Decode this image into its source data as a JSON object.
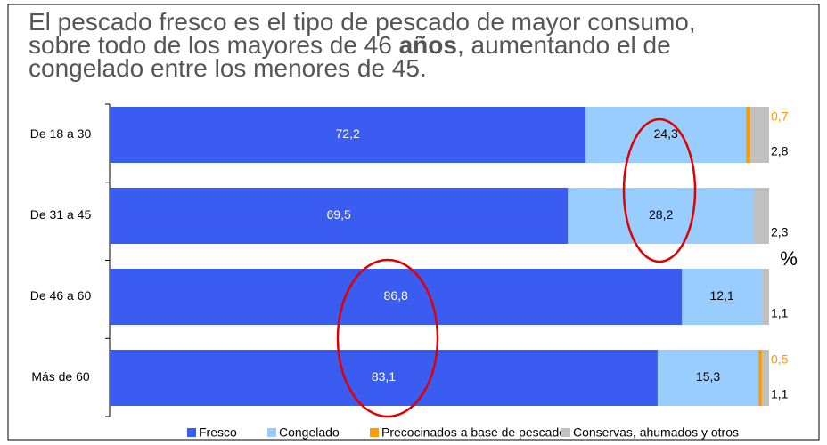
{
  "chart_data": {
    "type": "bar",
    "orientation": "horizontal",
    "stacked": true,
    "title_lines": [
      "El pescado fresco es el tipo de pescado de mayor consumo,",
      "sobre todo de los mayores de 46 ",
      "años",
      ", aumentando el de",
      "congelado entre los menores de 45."
    ],
    "unit_label": "%",
    "categories": [
      "De 18 a 30",
      "De 31 a 45",
      "De 46 a 60",
      "Más de 60"
    ],
    "xlim": [
      0,
      100
    ],
    "series": [
      {
        "name": "Fresco",
        "color": "#3b5cf0",
        "label_color": "#ffffff",
        "values": [
          72.2,
          69.5,
          86.8,
          83.1
        ],
        "value_labels": [
          "72,2",
          "69,5",
          "86,8",
          "83,1"
        ]
      },
      {
        "name": "Congelado",
        "color": "#99ccff",
        "label_color": "#000000",
        "values": [
          24.3,
          28.2,
          12.1,
          15.3
        ],
        "value_labels": [
          "24,3",
          "28,2",
          "12,1",
          "15,3"
        ]
      },
      {
        "name": "Precocinados a base de pescado",
        "color": "#ff9900",
        "label_color": "#ff9900",
        "values": [
          0.7,
          null,
          null,
          0.5
        ],
        "value_labels": [
          "0,7",
          null,
          null,
          "0,5"
        ]
      },
      {
        "name": "Conservas, ahumados y otros",
        "color": "#c0c0c0",
        "label_color": "#000000",
        "values": [
          2.8,
          2.3,
          1.1,
          1.1
        ],
        "value_labels": [
          "2,8",
          "2,3",
          "1,1",
          "1,1"
        ]
      }
    ]
  }
}
